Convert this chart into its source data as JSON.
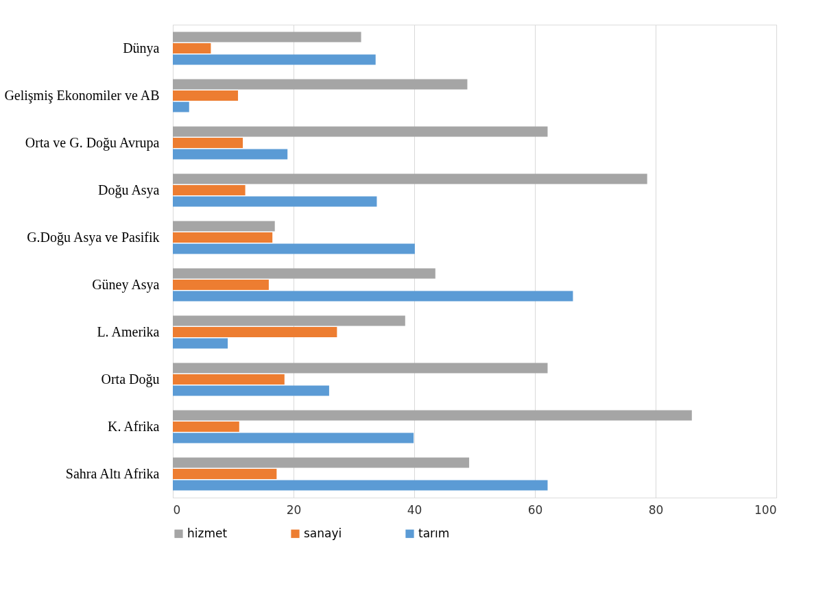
{
  "chart_data": {
    "type": "bar",
    "orientation": "horizontal",
    "categories": [
      "Dünya",
      "Gelişmiş Ekonomiler ve AB",
      "Orta ve G. Doğu Avrupa",
      "Doğu Asya",
      "G.Doğu Asya ve Pasifik",
      "Güney Asya",
      "L. Amerika",
      "Orta Doğu",
      "K. Afrika",
      "Sahra Altı Afrika"
    ],
    "series": [
      {
        "name": "hizmet",
        "color": "#a5a5a5",
        "values": [
          31.2,
          48.8,
          62.1,
          78.6,
          16.9,
          43.5,
          38.5,
          62.1,
          86.0,
          49.1
        ]
      },
      {
        "name": "sanayi",
        "color": "#ed7d31",
        "values": [
          6.3,
          10.8,
          11.6,
          12.0,
          16.5,
          15.9,
          27.2,
          18.5,
          11.0,
          17.2
        ]
      },
      {
        "name": "tarım",
        "color": "#5b9bd5",
        "values": [
          33.6,
          2.7,
          19.0,
          33.8,
          40.1,
          66.3,
          9.1,
          25.9,
          39.9,
          62.1
        ]
      }
    ],
    "xlim": [
      0,
      100
    ],
    "xticks": [
      0,
      20,
      40,
      60,
      80,
      100
    ],
    "grid": "x",
    "legend": "bottom"
  }
}
